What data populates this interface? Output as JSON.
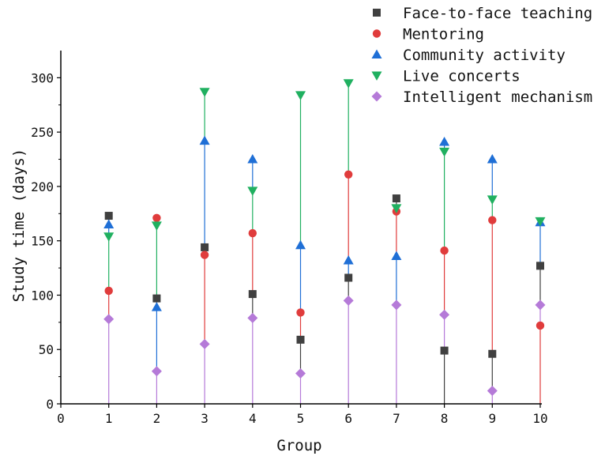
{
  "chart_data": {
    "type": "scatter",
    "xlabel": "Group",
    "ylabel": "Study time (days)",
    "xlim": [
      0,
      10
    ],
    "ylim": [
      0,
      325
    ],
    "x_ticks": [
      0,
      1,
      2,
      3,
      4,
      5,
      6,
      7,
      8,
      9,
      10
    ],
    "y_ticks": [
      0,
      50,
      100,
      150,
      200,
      250,
      300
    ],
    "grid": false,
    "legend_position": "top-right",
    "drop_lines": true,
    "series": [
      {
        "name": "Face-to-face teaching",
        "color": "#404040",
        "marker": "square",
        "x": [
          1,
          2,
          3,
          4,
          5,
          6,
          7,
          8,
          9,
          10
        ],
        "values": [
          173,
          97,
          144,
          101,
          59,
          116,
          189,
          49,
          46,
          127
        ]
      },
      {
        "name": "Mentoring",
        "color": "#e03c3c",
        "marker": "circle",
        "x": [
          1,
          2,
          3,
          4,
          5,
          6,
          7,
          8,
          9,
          10
        ],
        "values": [
          104,
          171,
          137,
          157,
          84,
          211,
          177,
          141,
          169,
          72
        ]
      },
      {
        "name": "Community activity",
        "color": "#1f6fd6",
        "marker": "triangle-up",
        "x": [
          1,
          2,
          3,
          4,
          5,
          6,
          7,
          8,
          9,
          10
        ],
        "values": [
          165,
          89,
          242,
          225,
          146,
          132,
          136,
          241,
          225,
          167
        ]
      },
      {
        "name": "Live concerts",
        "color": "#20b060",
        "marker": "triangle-down",
        "x": [
          1,
          2,
          3,
          4,
          5,
          6,
          7,
          8,
          9,
          10
        ],
        "values": [
          154,
          164,
          287,
          196,
          284,
          295,
          180,
          232,
          188,
          168
        ]
      },
      {
        "name": "Intelligent mechanism",
        "color": "#b57ad8",
        "marker": "diamond",
        "x": [
          1,
          2,
          3,
          4,
          5,
          6,
          7,
          8,
          9,
          10
        ],
        "values": [
          78,
          30,
          55,
          79,
          28,
          95,
          91,
          82,
          12,
          91
        ]
      }
    ]
  }
}
